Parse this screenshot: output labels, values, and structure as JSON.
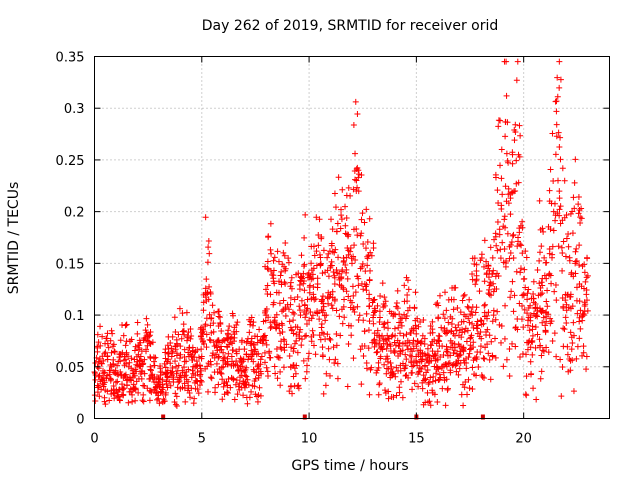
{
  "chart_data": {
    "type": "scatter",
    "title": "Day 262 of 2019, SRMTID for receiver orid",
    "xlabel": "GPS time / hours",
    "ylabel": "SRMTID / TECUs",
    "xlim": [
      0,
      24
    ],
    "ylim": [
      0,
      0.35
    ],
    "grid": true,
    "marker": "+",
    "marker_color": "#ff0000",
    "x_ticks": [
      0,
      5,
      10,
      15,
      20
    ],
    "x_tick_labels": [
      "0",
      "5",
      "10",
      "15",
      "20"
    ],
    "y_ticks": [
      0,
      0.05,
      0.1,
      0.15,
      0.2,
      0.25,
      0.3,
      0.35
    ],
    "y_tick_labels": [
      "0",
      "0.05",
      "0.1",
      "0.15",
      "0.2",
      "0.25",
      "0.3",
      "0.35"
    ],
    "data_gaps_x": [
      3.2,
      9.8,
      15.0,
      18.1
    ],
    "series": [
      {
        "name": "SRMTID",
        "x": [
          0.0,
          0.2,
          0.4,
          0.6,
          0.8,
          1.0,
          1.2,
          1.4,
          1.6,
          1.8,
          2.0,
          2.2,
          2.4,
          2.6,
          2.8,
          3.0,
          3.2,
          3.4,
          3.6,
          3.8,
          4.0,
          4.2,
          4.4,
          4.6,
          4.8,
          5.0,
          5.2,
          5.4,
          5.6,
          5.8,
          6.0,
          6.2,
          6.4,
          6.6,
          6.8,
          7.0,
          7.2,
          7.4,
          7.6,
          7.8,
          8.0,
          8.2,
          8.4,
          8.6,
          8.8,
          9.0,
          9.2,
          9.4,
          9.6,
          9.8,
          10.0,
          10.2,
          10.4,
          10.6,
          10.8,
          11.0,
          11.2,
          11.4,
          11.6,
          11.8,
          12.0,
          12.2,
          12.4,
          12.6,
          12.8,
          13.0,
          13.2,
          13.4,
          13.6,
          13.8,
          14.0,
          14.2,
          14.4,
          14.6,
          14.8,
          15.0,
          15.2,
          15.4,
          15.6,
          15.8,
          16.0,
          16.2,
          16.4,
          16.6,
          16.8,
          17.0,
          17.2,
          17.4,
          17.6,
          17.8,
          18.0,
          18.2,
          18.4,
          18.6,
          18.8,
          19.0,
          19.2,
          19.4,
          19.6,
          19.8,
          20.0,
          20.2,
          20.4,
          20.6,
          20.8,
          21.0,
          21.2,
          21.4,
          21.6,
          21.8,
          22.0,
          22.2,
          22.4,
          22.6,
          22.8
        ],
        "y": [
          0.045,
          0.055,
          0.04,
          0.06,
          0.05,
          0.035,
          0.045,
          0.06,
          0.05,
          0.04,
          0.055,
          0.045,
          0.065,
          0.05,
          0.04,
          0.035,
          0.03,
          0.055,
          0.06,
          0.05,
          0.07,
          0.055,
          0.06,
          0.05,
          0.045,
          0.06,
          0.12,
          0.09,
          0.07,
          0.06,
          0.05,
          0.055,
          0.06,
          0.065,
          0.05,
          0.045,
          0.06,
          0.055,
          0.05,
          0.06,
          0.1,
          0.12,
          0.095,
          0.09,
          0.105,
          0.11,
          0.085,
          0.075,
          0.1,
          0.11,
          0.095,
          0.12,
          0.13,
          0.115,
          0.1,
          0.12,
          0.13,
          0.14,
          0.125,
          0.135,
          0.15,
          0.22,
          0.145,
          0.13,
          0.12,
          0.1,
          0.085,
          0.08,
          0.075,
          0.07,
          0.065,
          0.07,
          0.08,
          0.075,
          0.065,
          0.07,
          0.06,
          0.05,
          0.055,
          0.06,
          0.065,
          0.07,
          0.065,
          0.075,
          0.08,
          0.07,
          0.065,
          0.085,
          0.1,
          0.09,
          0.095,
          0.11,
          0.12,
          0.1,
          0.19,
          0.17,
          0.21,
          0.16,
          0.22,
          0.18,
          0.12,
          0.09,
          0.075,
          0.1,
          0.12,
          0.09,
          0.14,
          0.2,
          0.23,
          0.16,
          0.11,
          0.12,
          0.15,
          0.13,
          0.1
        ]
      }
    ]
  }
}
